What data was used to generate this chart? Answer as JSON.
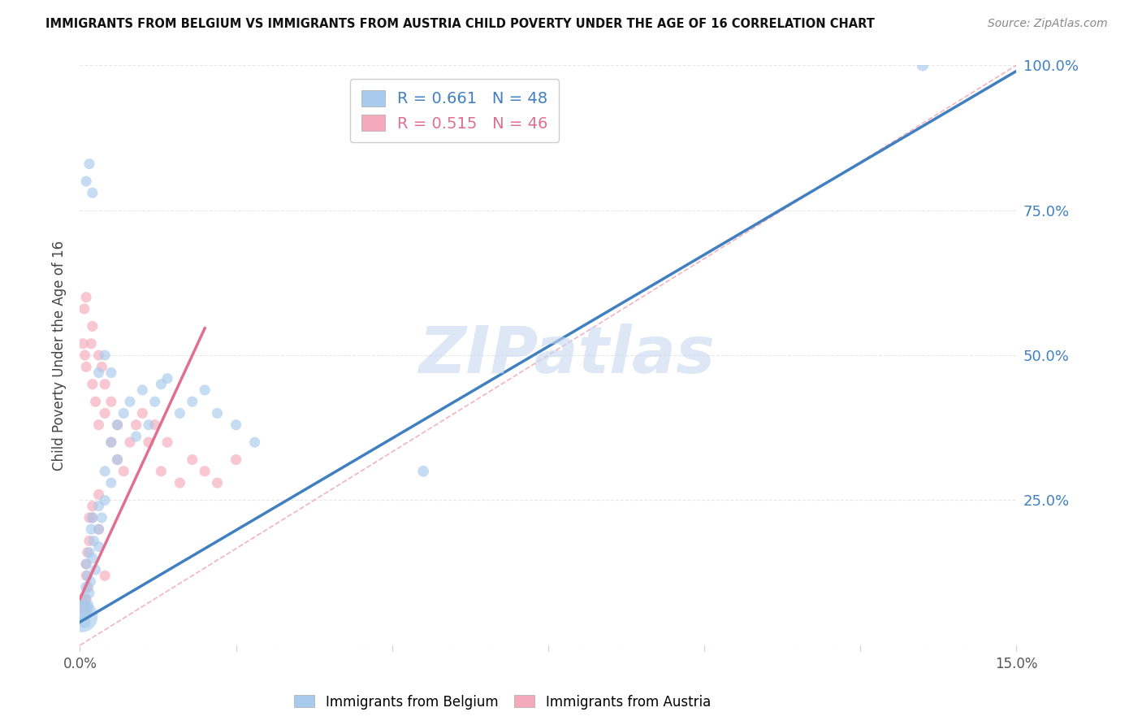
{
  "title": "IMMIGRANTS FROM BELGIUM VS IMMIGRANTS FROM AUSTRIA CHILD POVERTY UNDER THE AGE OF 16 CORRELATION CHART",
  "source": "Source: ZipAtlas.com",
  "ylabel": "Child Poverty Under the Age of 16",
  "xlim": [
    0.0,
    0.15
  ],
  "ylim": [
    0.0,
    1.0
  ],
  "belgium_R": 0.661,
  "belgium_N": 48,
  "austria_R": 0.515,
  "austria_N": 46,
  "belgium_color": "#A8CAEC",
  "austria_color": "#F5AABB",
  "belgium_line_color": "#4080C0",
  "austria_line_color": "#E07090",
  "ref_line_color": "#F0A0B0",
  "ref_line_style": "--",
  "watermark_color": "#C8D8F0",
  "right_axis_color": "#4080C0",
  "grid_color": "#E8E8E8",
  "bel_line": [
    0.0,
    0.055,
    0.15
  ],
  "bel_line_y": [
    0.04,
    0.47,
    0.99
  ],
  "aut_line": [
    0.0,
    0.008,
    0.018
  ],
  "aut_line_y": [
    0.08,
    0.3,
    0.5
  ],
  "bel_x": [
    0.0003,
    0.0005,
    0.0007,
    0.0008,
    0.001,
    0.001,
    0.0012,
    0.0013,
    0.0015,
    0.0015,
    0.0017,
    0.0018,
    0.002,
    0.002,
    0.0022,
    0.0025,
    0.003,
    0.003,
    0.003,
    0.0035,
    0.004,
    0.004,
    0.005,
    0.005,
    0.006,
    0.006,
    0.007,
    0.008,
    0.009,
    0.01,
    0.011,
    0.012,
    0.013,
    0.014,
    0.016,
    0.018,
    0.02,
    0.022,
    0.025,
    0.028,
    0.001,
    0.0015,
    0.002,
    0.003,
    0.004,
    0.055,
    0.005,
    0.135
  ],
  "bel_y": [
    0.05,
    0.06,
    0.04,
    0.08,
    0.1,
    0.14,
    0.12,
    0.07,
    0.09,
    0.16,
    0.11,
    0.2,
    0.15,
    0.22,
    0.18,
    0.13,
    0.2,
    0.24,
    0.17,
    0.22,
    0.25,
    0.3,
    0.28,
    0.35,
    0.32,
    0.38,
    0.4,
    0.42,
    0.36,
    0.44,
    0.38,
    0.42,
    0.45,
    0.46,
    0.4,
    0.42,
    0.44,
    0.4,
    0.38,
    0.35,
    0.8,
    0.83,
    0.78,
    0.47,
    0.5,
    0.3,
    0.47,
    1.0
  ],
  "bel_sizes": [
    800,
    300,
    120,
    100,
    100,
    90,
    90,
    90,
    90,
    90,
    90,
    90,
    90,
    90,
    90,
    90,
    90,
    90,
    90,
    90,
    90,
    90,
    90,
    90,
    90,
    90,
    90,
    90,
    90,
    90,
    90,
    90,
    90,
    90,
    90,
    90,
    90,
    90,
    90,
    90,
    90,
    90,
    90,
    90,
    90,
    100,
    90,
    110
  ],
  "aut_x": [
    0.0003,
    0.0005,
    0.0008,
    0.001,
    0.001,
    0.0013,
    0.0015,
    0.0018,
    0.002,
    0.002,
    0.0025,
    0.003,
    0.003,
    0.0035,
    0.004,
    0.004,
    0.005,
    0.005,
    0.006,
    0.006,
    0.007,
    0.008,
    0.009,
    0.01,
    0.011,
    0.012,
    0.013,
    0.014,
    0.016,
    0.018,
    0.02,
    0.022,
    0.025,
    0.001,
    0.0015,
    0.002,
    0.003,
    0.004,
    0.001,
    0.0008,
    0.0012,
    0.002,
    0.003,
    0.0005,
    0.0007,
    0.001
  ],
  "aut_y": [
    0.08,
    0.07,
    0.5,
    0.48,
    0.12,
    0.1,
    0.22,
    0.52,
    0.55,
    0.45,
    0.42,
    0.5,
    0.38,
    0.48,
    0.45,
    0.4,
    0.35,
    0.42,
    0.38,
    0.32,
    0.3,
    0.35,
    0.38,
    0.4,
    0.35,
    0.38,
    0.3,
    0.35,
    0.28,
    0.32,
    0.3,
    0.28,
    0.32,
    0.14,
    0.18,
    0.22,
    0.2,
    0.12,
    0.08,
    0.06,
    0.16,
    0.24,
    0.26,
    0.52,
    0.58,
    0.6
  ],
  "aut_sizes": [
    90,
    90,
    90,
    90,
    90,
    90,
    90,
    90,
    90,
    90,
    90,
    90,
    90,
    90,
    90,
    90,
    90,
    90,
    90,
    90,
    90,
    90,
    90,
    90,
    90,
    90,
    90,
    90,
    90,
    90,
    90,
    90,
    90,
    90,
    90,
    90,
    90,
    90,
    90,
    90,
    90,
    90,
    90,
    90,
    90,
    90
  ]
}
